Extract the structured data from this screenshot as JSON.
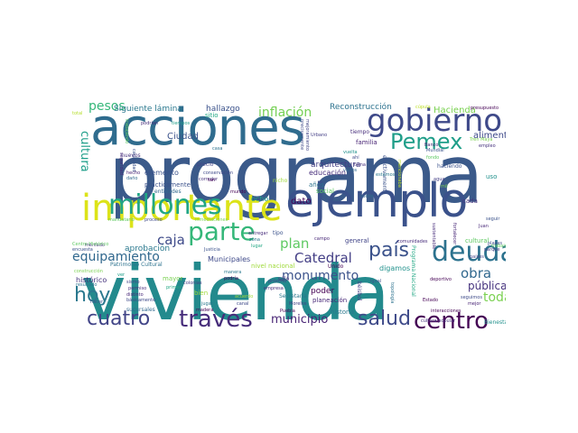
{
  "word_cloud": {
    "words": [
      {
        "text": "programa",
        "color": "#3b5a8a"
      },
      {
        "text": "vivienda",
        "color": "#238a8d"
      },
      {
        "text": "acciones",
        "color": "#2f6c8e"
      },
      {
        "text": "ejemplo",
        "color": "#3b528b"
      },
      {
        "text": "importante",
        "color": "#dce319"
      },
      {
        "text": "gobierno",
        "color": "#3e4989"
      },
      {
        "text": "millones",
        "color": "#21a685"
      },
      {
        "text": "parte",
        "color": "#35b779"
      },
      {
        "text": "deuda",
        "color": "#2c728e"
      },
      {
        "text": "Pemex",
        "color": "#1f9e89"
      },
      {
        "text": "apoyo",
        "color": "#482878"
      },
      {
        "text": "centro",
        "color": "#440154"
      },
      {
        "text": "salud",
        "color": "#3e4a89"
      },
      {
        "text": "través",
        "color": "#472d7b"
      },
      {
        "text": "cuatro",
        "color": "#414487"
      },
      {
        "text": "hoy",
        "color": "#2a788e"
      },
      {
        "text": "país",
        "color": "#3b528b"
      },
      {
        "text": "caja",
        "color": "#3e4a89"
      },
      {
        "text": "plan",
        "color": "#5ec962"
      },
      {
        "text": "Catedral",
        "color": "#433e85"
      },
      {
        "text": "monumento",
        "color": "#3b528b"
      },
      {
        "text": "municipio",
        "color": "#482475"
      },
      {
        "text": "equipamiento",
        "color": "#31688e"
      },
      {
        "text": "inflación",
        "color": "#75d054"
      },
      {
        "text": "pesos",
        "color": "#35b779"
      },
      {
        "text": "cultura",
        "color": "#1f9e89"
      },
      {
        "text": "obra",
        "color": "#31688e"
      },
      {
        "text": "toda",
        "color": "#7ad151"
      },
      {
        "text": "pública",
        "color": "#46337e"
      },
      {
        "text": "Siguiente lámina",
        "color": "#2a788e"
      },
      {
        "text": "hallazgo",
        "color": "#3b528b"
      },
      {
        "text": "Reconstrucción",
        "color": "#2c728e"
      },
      {
        "text": "Hacienda",
        "color": "#7ad151"
      },
      {
        "text": "alimento",
        "color": "#3e4989"
      },
      {
        "text": "Ciudad",
        "color": "#3b528b"
      },
      {
        "text": "arquitectura",
        "color": "#433e85"
      },
      {
        "text": "educación",
        "color": "#472d7b"
      },
      {
        "text": "dato",
        "color": "#440154"
      },
      {
        "text": "aprobación",
        "color": "#2a788e"
      },
      {
        "text": "histórico",
        "color": "#46337e"
      },
      {
        "text": "elemento",
        "color": "#3b528b"
      },
      {
        "text": "general",
        "color": "#414487"
      },
      {
        "text": "cultural",
        "color": "#5ec962"
      },
      {
        "text": "años",
        "color": "#2c728e"
      },
      {
        "text": "mayor",
        "color": "#7ad151"
      },
      {
        "text": "bien",
        "color": "#9fda3a"
      },
      {
        "text": "poder",
        "color": "#440154"
      },
      {
        "text": "digamos",
        "color": "#21918c"
      },
      {
        "text": "Municipales",
        "color": "#3e4989"
      },
      {
        "text": "Unido",
        "color": "#440154"
      },
      {
        "text": "nivel nacional",
        "color": "#9fda3a"
      },
      {
        "text": "Bienestar",
        "color": "#21918c"
      },
      {
        "text": "historia",
        "color": "#2a788e"
      },
      {
        "text": "planeación",
        "color": "#482878"
      },
      {
        "text": "ocho",
        "color": "#1f9e89"
      },
      {
        "text": "Secretaría",
        "color": "#2a788e"
      },
      {
        "text": "sólo",
        "color": "#46337e"
      },
      {
        "text": "social",
        "color": "#5ec962"
      },
      {
        "text": "tiempo",
        "color": "#472d7b"
      },
      {
        "text": "familia",
        "color": "#482475"
      },
      {
        "text": "sitio",
        "color": "#22a884"
      },
      {
        "text": "precio",
        "color": "#414487"
      },
      {
        "text": "mundo",
        "color": "#440154"
      },
      {
        "text": "entidades",
        "color": "#31688e"
      },
      {
        "text": "prácticamente",
        "color": "#3b528b"
      },
      {
        "text": "proceso",
        "color": "#3e4a89"
      },
      {
        "text": "mercado",
        "color": "#46337e"
      },
      {
        "text": "encuesta",
        "color": "#3b528b"
      },
      {
        "text": "resultado",
        "color": "#2c728e"
      },
      {
        "text": "permiso",
        "color": "#472d7b"
      },
      {
        "text": "distinto",
        "color": "#482878"
      },
      {
        "text": "básicamente",
        "color": "#3e4989"
      },
      {
        "text": "sucursales",
        "color": "#31688e"
      },
      {
        "text": "madera",
        "color": "#440154"
      },
      {
        "text": "jugar",
        "color": "#2a788e"
      },
      {
        "text": "colonias",
        "color": "#433e85"
      },
      {
        "text": "empresa",
        "color": "#472d7b"
      },
      {
        "text": "próximo",
        "color": "#414487"
      },
      {
        "text": "deportivo",
        "color": "#440154"
      },
      {
        "text": "mejor",
        "color": "#482475"
      },
      {
        "text": "seguimos",
        "color": "#3e4a89"
      },
      {
        "text": "interacciones",
        "color": "#440154"
      },
      {
        "text": "países",
        "color": "#414487"
      },
      {
        "text": "empleo",
        "color": "#46337e"
      },
      {
        "text": "haciendo",
        "color": "#3b528b"
      },
      {
        "text": "uso",
        "color": "#21918c"
      },
      {
        "text": "cada",
        "color": "#46337e"
      },
      {
        "text": "presupuesto",
        "color": "#440154"
      },
      {
        "text": "comunidades",
        "color": "#472d7b"
      },
      {
        "text": "Urbano",
        "color": "#433e85"
      },
      {
        "text": "tipo",
        "color": "#3b528b"
      },
      {
        "text": "campo",
        "color": "#482878"
      },
      {
        "text": "nueve",
        "color": "#31688e"
      },
      {
        "text": "precisamente",
        "color": "#3e4989"
      },
      {
        "text": "Patrimonio Cultural",
        "color": "#2c728e"
      },
      {
        "text": "construcción",
        "color": "#7ad151"
      },
      {
        "text": "sismo",
        "color": "#414487"
      },
      {
        "text": "primer",
        "color": "#22a884"
      },
      {
        "text": "Justicia",
        "color": "#3b528b"
      },
      {
        "text": "trabajando",
        "color": "#5ec962"
      },
      {
        "text": "seguridad",
        "color": "#482878"
      },
      {
        "text": "mencionaba",
        "color": "#bddf26"
      },
      {
        "text": "efectivamente",
        "color": "#3b528b"
      },
      {
        "text": "mejoramiento",
        "color": "#414487"
      },
      {
        "text": "Programa Nacional",
        "color": "#22a884"
      },
      {
        "text": "béisbol",
        "color": "#433e85"
      },
      {
        "text": "topología",
        "color": "#2c728e"
      },
      {
        "text": "sustentable",
        "color": "#472d7b"
      },
      {
        "text": "fortalecer",
        "color": "#482878"
      },
      {
        "text": "capacidad",
        "color": "#3b528b"
      },
      {
        "text": "nuevos",
        "color": "#46337e"
      },
      {
        "text": "inmediaciones",
        "color": "#7ad151"
      },
      {
        "text": "Centro Histórico",
        "color": "#5ec962"
      },
      {
        "text": "plazas",
        "color": "#3e4989"
      },
      {
        "text": "parque",
        "color": "#414487"
      },
      {
        "text": "cúpula",
        "color": "#bddf26"
      },
      {
        "text": "manera",
        "color": "#2a788e"
      },
      {
        "text": "podría",
        "color": "#440154"
      },
      {
        "text": "mandatario",
        "color": "#5ec962"
      },
      {
        "text": "daño",
        "color": "#31688e"
      },
      {
        "text": "hecho",
        "color": "#482475"
      },
      {
        "text": "conservación",
        "color": "#3e4989"
      },
      {
        "text": "corredor",
        "color": "#46337e"
      },
      {
        "text": "nicho",
        "color": "#9fda3a"
      },
      {
        "text": "igual",
        "color": "#3b528b"
      },
      {
        "text": "tan",
        "color": "#440154"
      },
      {
        "text": "casa",
        "color": "#2c728e"
      },
      {
        "text": "total",
        "color": "#b5de2b"
      },
      {
        "text": "podrían",
        "color": "#472d7b"
      },
      {
        "text": "tiempos",
        "color": "#1f9e89"
      },
      {
        "text": "Tren Maya",
        "color": "#7ad151"
      },
      {
        "text": "Juan",
        "color": "#482878"
      },
      {
        "text": "seguir",
        "color": "#3b528b"
      },
      {
        "text": "trabajo",
        "color": "#5ec962"
      },
      {
        "text": "vuelta",
        "color": "#21918c"
      },
      {
        "text": "ahí",
        "color": "#3e4a89"
      },
      {
        "text": "tema",
        "color": "#46337e"
      },
      {
        "text": "varios",
        "color": "#31688e"
      },
      {
        "text": "Puebla",
        "color": "#440154"
      },
      {
        "text": "Morelos",
        "color": "#414487"
      },
      {
        "text": "estamos",
        "color": "#2a788e"
      },
      {
        "text": "Banco",
        "color": "#482475"
      },
      {
        "text": "Mundial",
        "color": "#3b528b"
      },
      {
        "text": "fondo",
        "color": "#5ec962"
      },
      {
        "text": "acuerdo",
        "color": "#9fda3a"
      },
      {
        "text": "canal",
        "color": "#3e4989"
      },
      {
        "text": "entregar",
        "color": "#472d7b"
      },
      {
        "text": "zona",
        "color": "#2c728e"
      },
      {
        "text": "lugar",
        "color": "#22a884"
      },
      {
        "text": "agua",
        "color": "#433e85"
      },
      {
        "text": "mil",
        "color": "#7ad151"
      },
      {
        "text": "cultura popular",
        "color": "#46337e"
      },
      {
        "text": "Estado",
        "color": "#440154"
      },
      {
        "text": "ver",
        "color": "#1f9e89"
      },
      {
        "text": "hacer",
        "color": "#3b528b"
      },
      {
        "text": "México",
        "color": "#482878"
      },
      {
        "text": "dos",
        "color": "#5ec962"
      },
      {
        "text": "ejemplar",
        "color": "#414487"
      }
    ]
  }
}
